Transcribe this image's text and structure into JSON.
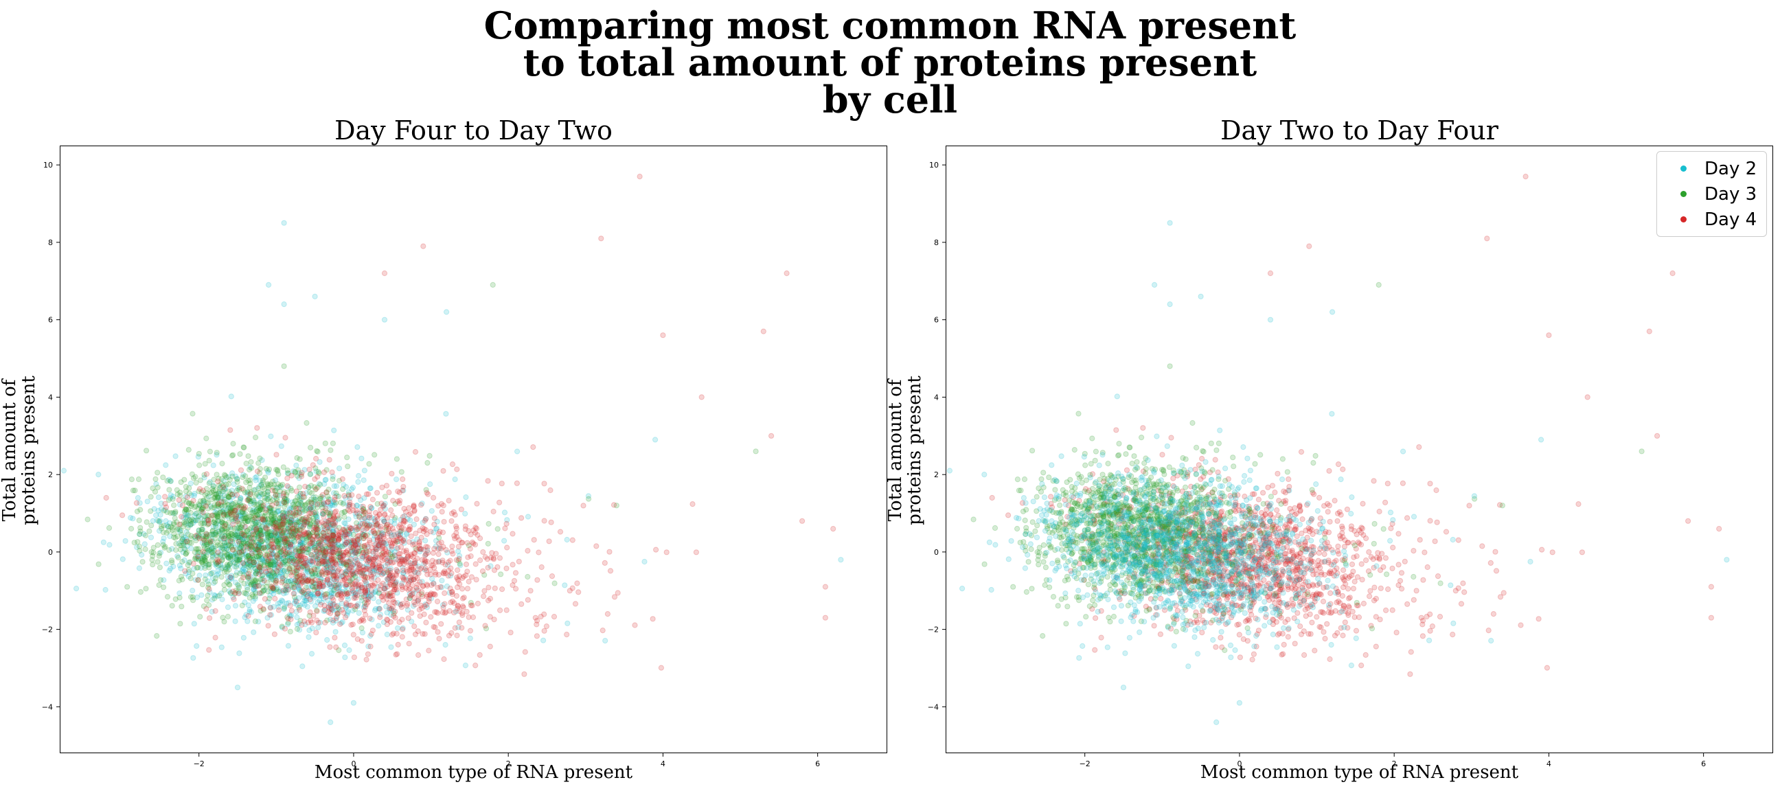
{
  "suptitle": {
    "line1": "Comparing most common RNA present",
    "line2": "to total amount of proteins present",
    "line3": "by cell"
  },
  "chart_data": [
    {
      "type": "scatter",
      "title": "Day Four to Day Two",
      "xlabel": "Most common type of RNA present",
      "ylabel_line1": "Total amount of",
      "ylabel_line2": "proteins present",
      "xlim": [
        -3.8,
        6.9
      ],
      "ylim": [
        -5.2,
        10.5
      ],
      "xticks": [
        -2,
        0,
        2,
        4,
        6
      ],
      "xtick_labels": [
        "−2",
        "0",
        "2",
        "4",
        "6"
      ],
      "yticks": [
        -4,
        -2,
        0,
        2,
        4,
        6,
        8,
        10
      ],
      "ytick_labels": [
        "−4",
        "−2",
        "0",
        "2",
        "4",
        "6",
        "8",
        "10"
      ],
      "draw_order": [
        "Day 2",
        "Day 3",
        "Day 4"
      ],
      "alpha": 0.2,
      "legend": false,
      "series": [
        {
          "name": "Day 2",
          "color": "#17becf",
          "center": [
            -0.8,
            0.0
          ],
          "spread": [
            0.85,
            1.0
          ],
          "rho": -0.2,
          "outliers": [
            [
              -0.9,
              8.5
            ],
            [
              -1.1,
              6.9
            ],
            [
              -0.5,
              6.6
            ],
            [
              -0.9,
              6.4
            ],
            [
              -3.3,
              2.0
            ],
            [
              -0.3,
              -4.4
            ],
            [
              0.0,
              -3.9
            ],
            [
              6.3,
              -0.2
            ],
            [
              3.9,
              2.9
            ],
            [
              -1.5,
              -3.5
            ],
            [
              1.2,
              6.2
            ],
            [
              0.4,
              6.0
            ]
          ]
        },
        {
          "name": "Day 3",
          "color": "#2ca02c",
          "center": [
            -1.3,
            0.5
          ],
          "spread": [
            0.7,
            0.85
          ],
          "rho": -0.1,
          "outliers": [
            [
              1.8,
              6.9
            ],
            [
              5.2,
              2.6
            ],
            [
              -0.9,
              4.8
            ],
            [
              3.4,
              1.2
            ]
          ]
        },
        {
          "name": "Day 4",
          "color": "#d62728",
          "center": [
            0.1,
            -0.2
          ],
          "spread": [
            0.95,
            0.95
          ],
          "rho": -0.3,
          "outliers": [
            [
              3.7,
              9.7
            ],
            [
              0.9,
              7.9
            ],
            [
              3.2,
              8.1
            ],
            [
              5.6,
              7.2
            ],
            [
              5.3,
              5.7
            ],
            [
              4.0,
              5.6
            ],
            [
              4.5,
              4.0
            ],
            [
              6.2,
              0.6
            ],
            [
              6.1,
              -0.9
            ],
            [
              6.1,
              -1.7
            ],
            [
              5.8,
              0.8
            ],
            [
              5.4,
              3.0
            ],
            [
              0.4,
              7.2
            ]
          ]
        }
      ]
    },
    {
      "type": "scatter",
      "title": "Day Two to Day Four",
      "xlabel": "Most common type of RNA present",
      "ylabel_line1": "Total amount of",
      "ylabel_line2": "proteins present",
      "xlim": [
        -3.8,
        6.9
      ],
      "ylim": [
        -5.2,
        10.5
      ],
      "xticks": [
        -2,
        0,
        2,
        4,
        6
      ],
      "xtick_labels": [
        "−2",
        "0",
        "2",
        "4",
        "6"
      ],
      "yticks": [
        -4,
        -2,
        0,
        2,
        4,
        6,
        8,
        10
      ],
      "ytick_labels": [
        "−4",
        "−2",
        "0",
        "2",
        "4",
        "6",
        "8",
        "10"
      ],
      "draw_order": [
        "Day 4",
        "Day 3",
        "Day 2"
      ],
      "alpha": 0.2,
      "legend": true,
      "legend_position": "upper right",
      "series": [
        {
          "name": "Day 2",
          "color": "#17becf",
          "center": [
            -0.8,
            0.0
          ],
          "spread": [
            0.85,
            1.0
          ],
          "rho": -0.2,
          "outliers": [
            [
              -0.9,
              8.5
            ],
            [
              -1.1,
              6.9
            ],
            [
              -0.5,
              6.6
            ],
            [
              -0.9,
              6.4
            ],
            [
              -3.3,
              2.0
            ],
            [
              -0.3,
              -4.4
            ],
            [
              0.0,
              -3.9
            ],
            [
              6.3,
              -0.2
            ],
            [
              3.9,
              2.9
            ],
            [
              -1.5,
              -3.5
            ],
            [
              1.2,
              6.2
            ],
            [
              0.4,
              6.0
            ]
          ]
        },
        {
          "name": "Day 3",
          "color": "#2ca02c",
          "center": [
            -1.3,
            0.5
          ],
          "spread": [
            0.7,
            0.85
          ],
          "rho": -0.1,
          "outliers": [
            [
              1.8,
              6.9
            ],
            [
              5.2,
              2.6
            ],
            [
              -0.9,
              4.8
            ],
            [
              3.4,
              1.2
            ]
          ]
        },
        {
          "name": "Day 4",
          "color": "#d62728",
          "center": [
            0.1,
            -0.2
          ],
          "spread": [
            0.95,
            0.95
          ],
          "rho": -0.3,
          "outliers": [
            [
              3.7,
              9.7
            ],
            [
              0.9,
              7.9
            ],
            [
              3.2,
              8.1
            ],
            [
              5.6,
              7.2
            ],
            [
              5.3,
              5.7
            ],
            [
              4.0,
              5.6
            ],
            [
              4.5,
              4.0
            ],
            [
              6.2,
              0.6
            ],
            [
              6.1,
              -0.9
            ],
            [
              6.1,
              -1.7
            ],
            [
              5.8,
              0.8
            ],
            [
              5.4,
              3.0
            ],
            [
              0.4,
              7.2
            ]
          ]
        }
      ]
    }
  ],
  "legend": {
    "items": [
      {
        "label": "Day 2",
        "color": "#17becf"
      },
      {
        "label": "Day 3",
        "color": "#2ca02c"
      },
      {
        "label": "Day 4",
        "color": "#d62728"
      }
    ]
  }
}
